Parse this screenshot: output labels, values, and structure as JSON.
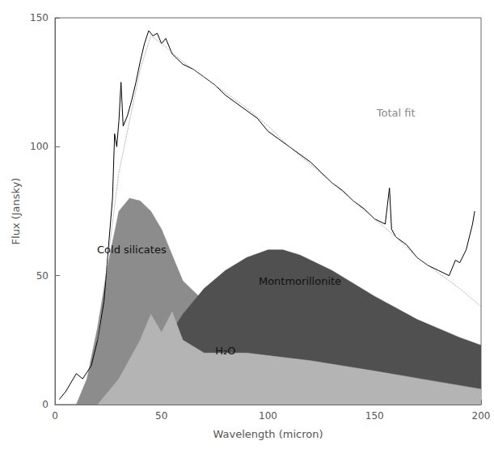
{
  "chart_data": {
    "type": "line",
    "x_label": "Wavelength (micron)",
    "y_label": "Flux (Jansky)",
    "xlim": [
      0,
      200
    ],
    "xticks": [
      0,
      50,
      100,
      150,
      200
    ],
    "ylim": [
      0,
      150
    ],
    "yticks": [
      0,
      50,
      100,
      150
    ],
    "grid": false,
    "series": [
      {
        "name": "Cold silicates",
        "type": "area",
        "color": "#8c8c8c",
        "label_position": [
          36,
          60
        ],
        "x": [
          10,
          15,
          20,
          25,
          30,
          35,
          40,
          45,
          50,
          55,
          60,
          70,
          80,
          90,
          100,
          120,
          150,
          200
        ],
        "values": [
          0,
          10,
          30,
          55,
          75,
          80,
          79,
          75,
          68,
          58,
          48,
          40,
          33,
          28,
          24,
          18,
          13,
          8
        ]
      },
      {
        "name": "Montmorillonite",
        "type": "area",
        "color": "#505050",
        "label_position": [
          115,
          48
        ],
        "x": [
          40,
          45,
          50,
          60,
          70,
          80,
          90,
          100,
          107,
          115,
          130,
          150,
          170,
          190,
          200
        ],
        "values": [
          0,
          10,
          22,
          35,
          45,
          52,
          57,
          60,
          60,
          58,
          52,
          42,
          33,
          26,
          23
        ]
      },
      {
        "name": "H₂O",
        "type": "area",
        "color": "#b4b4b4",
        "label_position": [
          80,
          21
        ],
        "x": [
          20,
          30,
          40,
          45,
          50,
          55,
          60,
          70,
          90,
          120,
          150,
          200
        ],
        "values": [
          0,
          10,
          25,
          35,
          28,
          36,
          25,
          20,
          20,
          17,
          13,
          6
        ]
      },
      {
        "type": "line",
        "color": "#000000",
        "line_style": "solid",
        "x": [
          2,
          5,
          10,
          13,
          17,
          20,
          23,
          25,
          27,
          28,
          29,
          30,
          31,
          32,
          34,
          36,
          38,
          40,
          42,
          44,
          46,
          48,
          50,
          52,
          55,
          60,
          65,
          70,
          75,
          80,
          85,
          90,
          95,
          100,
          105,
          110,
          115,
          120,
          125,
          130,
          135,
          140,
          145,
          150,
          155,
          157,
          158,
          160,
          165,
          170,
          175,
          180,
          185,
          188,
          190,
          193,
          196,
          197
        ],
        "values": [
          2,
          5,
          12,
          10,
          15,
          25,
          40,
          60,
          80,
          105,
          100,
          110,
          125,
          108,
          112,
          118,
          125,
          133,
          140,
          145,
          143,
          144,
          140,
          142,
          136,
          132,
          130,
          127,
          124,
          120,
          117,
          114,
          111,
          106,
          103,
          100,
          97,
          94,
          90,
          86,
          83,
          79,
          76,
          72,
          70,
          84,
          68,
          65,
          62,
          57,
          54,
          52,
          50,
          56,
          55,
          60,
          70,
          75
        ]
      },
      {
        "name": "Total fit",
        "type": "line",
        "color": "#9a9a9a",
        "line_style": "dotted",
        "label_position": [
          160,
          113
        ],
        "x": [
          20,
          30,
          40,
          45,
          50,
          60,
          70,
          80,
          90,
          100,
          110,
          120,
          130,
          140,
          150,
          160,
          170,
          180,
          190,
          200
        ],
        "values": [
          25,
          90,
          130,
          143,
          140,
          133,
          127,
          121,
          115,
          108,
          100,
          93,
          86,
          79,
          72,
          65,
          57,
          51,
          45,
          38
        ]
      }
    ]
  }
}
